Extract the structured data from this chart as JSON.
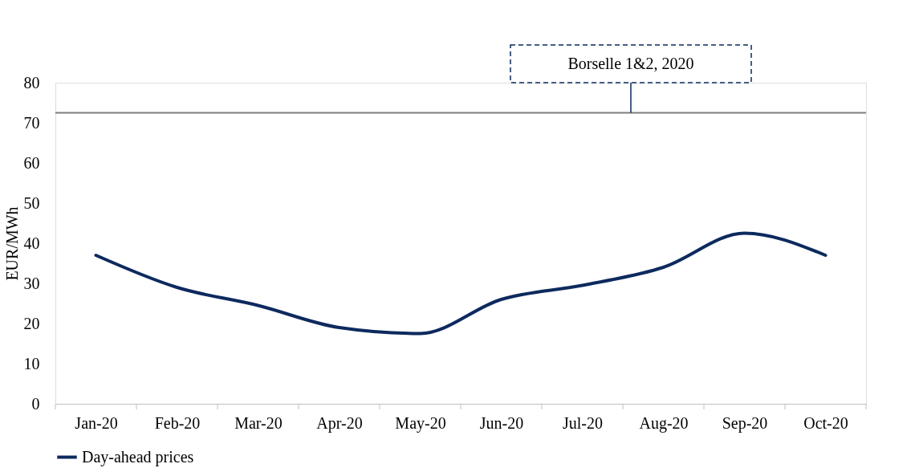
{
  "chart_data": {
    "type": "line",
    "ylabel": "EUR/MWh",
    "categories": [
      "Jan-20",
      "Feb-20",
      "Mar-20",
      "Apr-20",
      "May-20",
      "Jun-20",
      "Jul-20",
      "Aug-20",
      "Sep-20",
      "Oct-20"
    ],
    "series": [
      {
        "name": "Day-ahead prices",
        "color": "#0d2a5e",
        "values": [
          37,
          29,
          24.5,
          19,
          17.5,
          26,
          29.5,
          34,
          42.5,
          37
        ]
      }
    ],
    "ylim": [
      0,
      80
    ],
    "yticks": [
      0,
      10,
      20,
      30,
      40,
      50,
      60,
      70,
      80
    ],
    "ref_lines": [
      {
        "axis": "y",
        "value": 72.5,
        "label": "Borselle 1&2, 2020",
        "color": "#7f7f7f"
      }
    ],
    "grid": false,
    "legend": "bottom",
    "marker": "none",
    "line_style": "solid"
  }
}
